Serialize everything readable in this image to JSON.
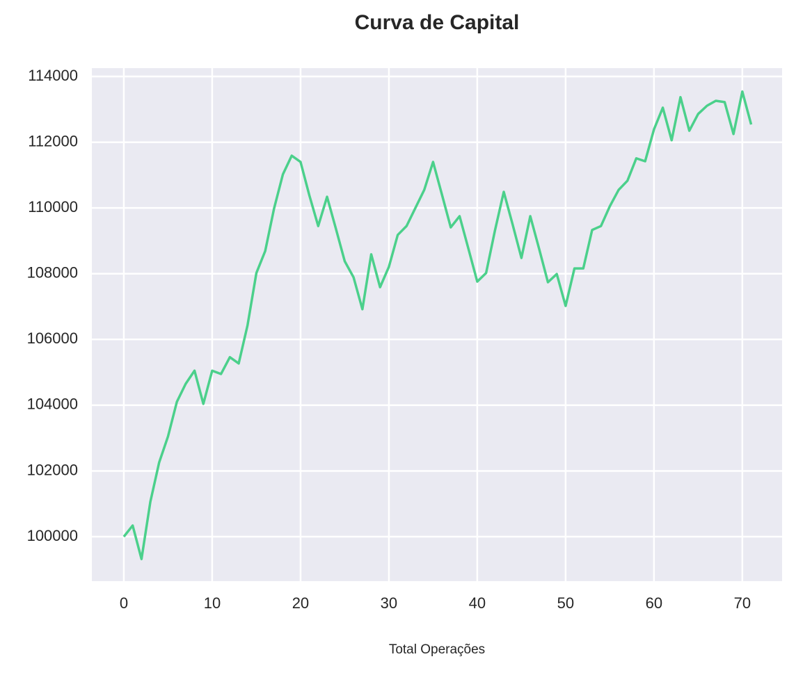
{
  "chart_data": {
    "type": "line",
    "title": "Curva de Capital",
    "x_label": "Total Operações",
    "x": [
      0,
      1,
      2,
      3,
      4,
      5,
      6,
      7,
      8,
      9,
      10,
      11,
      12,
      13,
      14,
      15,
      16,
      17,
      18,
      19,
      20,
      21,
      22,
      23,
      24,
      25,
      26,
      27,
      28,
      29,
      30,
      31,
      32,
      33,
      34,
      35,
      36,
      37,
      38,
      39,
      40,
      41,
      42,
      43,
      44,
      45,
      46,
      47,
      48,
      49,
      50,
      51,
      52,
      53,
      54,
      55,
      56,
      57,
      58,
      59,
      60,
      61,
      62,
      63,
      64,
      65,
      66,
      67,
      68,
      69,
      70,
      71
    ],
    "series": [
      {
        "color": "#4bd08b",
        "values": [
          100000,
          100340,
          99320,
          101060,
          102260,
          103050,
          104100,
          104650,
          105050,
          104040,
          105050,
          104950,
          105460,
          105270,
          106430,
          108020,
          108690,
          109980,
          111020,
          111590,
          111400,
          110380,
          109450,
          110340,
          109370,
          108380,
          107890,
          106920,
          108590,
          107590,
          108210,
          109180,
          109450,
          110000,
          110550,
          111400,
          110410,
          109410,
          109750,
          108760,
          107760,
          108020,
          109310,
          110490,
          109500,
          108480,
          109750,
          108760,
          107740,
          107990,
          107020,
          108160,
          108160,
          109330,
          109450,
          110050,
          110550,
          110830,
          111510,
          111420,
          112390,
          113050,
          112060,
          113370,
          112350,
          112860,
          113110,
          113260,
          113220,
          112250,
          113540,
          112540
        ]
      }
    ],
    "xlim": [
      -3.62,
      74.5
    ],
    "ylim": [
      98647,
      114254
    ],
    "xticks": [
      0,
      10,
      20,
      30,
      40,
      50,
      60,
      70
    ],
    "yticks": [
      100000,
      102000,
      104000,
      106000,
      108000,
      110000,
      112000,
      114000
    ],
    "grid": true
  }
}
